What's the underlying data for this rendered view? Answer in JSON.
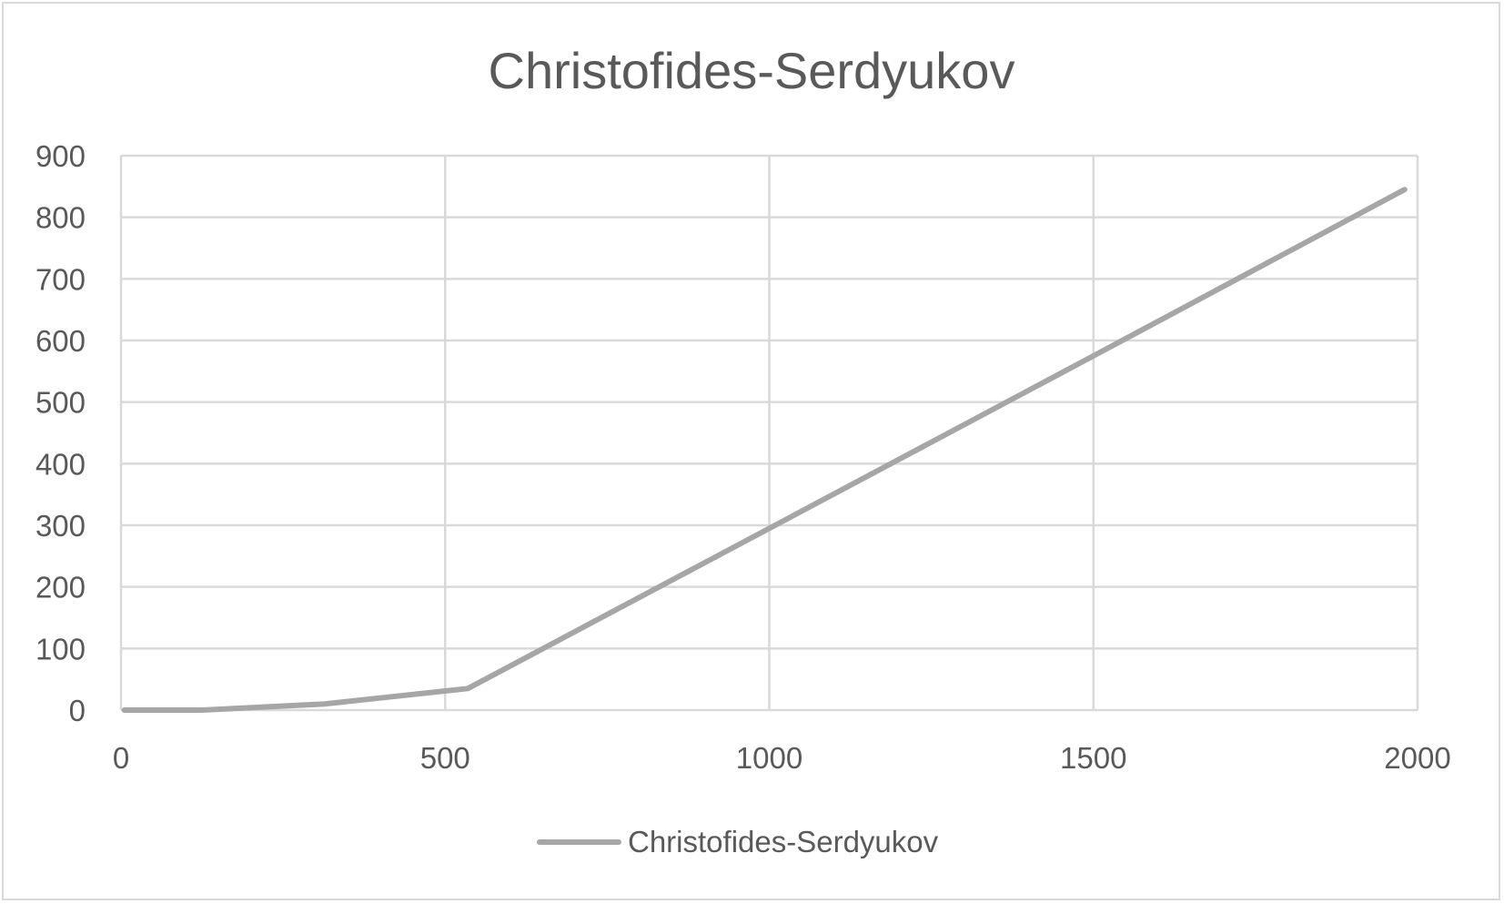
{
  "chart_data": {
    "type": "line",
    "title": "Christofides-Serdyukov",
    "xlabel": "",
    "ylabel": "",
    "xlim": [
      0,
      2000
    ],
    "ylim": [
      0,
      900
    ],
    "x_ticks": [
      0,
      500,
      1000,
      1500,
      2000
    ],
    "y_ticks": [
      0,
      100,
      200,
      300,
      400,
      500,
      600,
      700,
      800,
      900
    ],
    "grid": true,
    "legend_position": "bottom",
    "series": [
      {
        "name": "Christofides-Serdyukov",
        "color": "#a6a6a6",
        "x": [
          5,
          60,
          125,
          315,
          535,
          1000,
          1500,
          1980
        ],
        "y": [
          0,
          0,
          0,
          10,
          35,
          295,
          575,
          845
        ]
      }
    ]
  },
  "colors": {
    "gridline": "#d9d9d9",
    "text": "#595959",
    "series": "#a6a6a6"
  }
}
